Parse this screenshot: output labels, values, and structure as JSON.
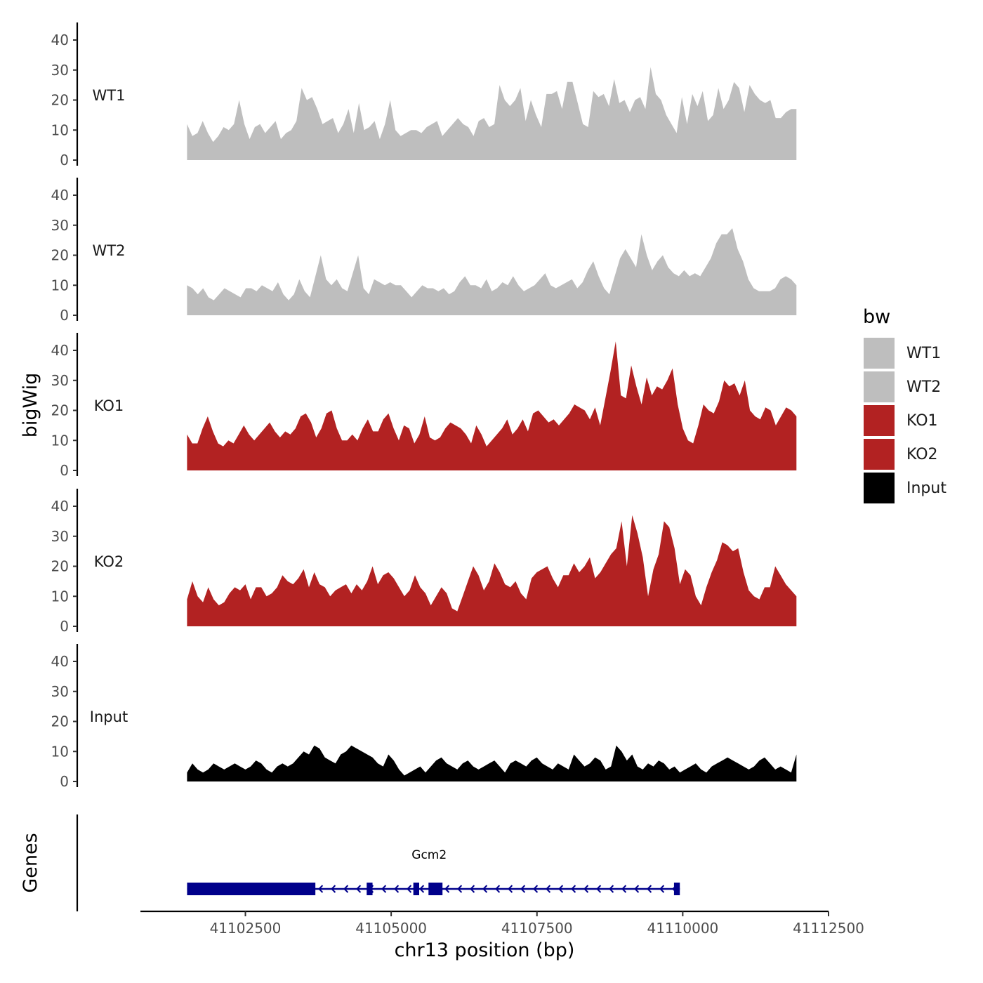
{
  "chart_data": {
    "type": "area",
    "title": "",
    "chromosome": "chr13",
    "xlabel": "chr13 position (bp)",
    "ylabel": "bigWig",
    "genes_label": "Genes",
    "xlim": [
      41100700,
      41112500
    ],
    "ylim": [
      0,
      45
    ],
    "x_ticks": [
      41102500,
      41105000,
      41107500,
      41110000,
      41112500
    ],
    "y_ticks": [
      0,
      10,
      20,
      30,
      40
    ],
    "region": [
      41101500,
      41111950
    ],
    "legend": {
      "title": "bw",
      "position": "right",
      "entries": [
        {
          "label": "WT1",
          "color": "#bebebe"
        },
        {
          "label": "WT2",
          "color": "#bebebe"
        },
        {
          "label": "KO1",
          "color": "#b22222"
        },
        {
          "label": "KO2",
          "color": "#b22222"
        },
        {
          "label": "Input",
          "color": "#000000"
        }
      ]
    },
    "series": [
      {
        "name": "WT1",
        "color": "#bebebe",
        "values": [
          12,
          8,
          9,
          13,
          9,
          6,
          8,
          11,
          10,
          12,
          20,
          12,
          7,
          11,
          12,
          9,
          11,
          13,
          7,
          9,
          10,
          13,
          24,
          20,
          21,
          17,
          12,
          13,
          14,
          9,
          12,
          17,
          9,
          19,
          10,
          11,
          13,
          7,
          12,
          20,
          10,
          8,
          9,
          10,
          10,
          9,
          11,
          12,
          13,
          8,
          10,
          12,
          14,
          12,
          11,
          8,
          13,
          14,
          11,
          12,
          25,
          20,
          18,
          20,
          24,
          13,
          20,
          15,
          11,
          22,
          22,
          23,
          17,
          26,
          26,
          19,
          12,
          11,
          23,
          21,
          22,
          18,
          27,
          19,
          20,
          16,
          20,
          21,
          17,
          31,
          22,
          20,
          15,
          12,
          9,
          21,
          12,
          22,
          18,
          23,
          13,
          15,
          24,
          17,
          20,
          26,
          24,
          16,
          25,
          22,
          20,
          19,
          20,
          14,
          14,
          16,
          17,
          17
        ]
      },
      {
        "name": "WT2",
        "color": "#bebebe",
        "values": [
          10,
          9,
          7,
          9,
          6,
          5,
          7,
          9,
          8,
          7,
          6,
          9,
          9,
          8,
          10,
          9,
          8,
          11,
          7,
          5,
          7,
          12,
          8,
          6,
          13,
          20,
          12,
          10,
          12,
          9,
          8,
          14,
          20,
          9,
          7,
          12,
          11,
          10,
          11,
          10,
          10,
          8,
          6,
          8,
          10,
          9,
          9,
          8,
          9,
          7,
          8,
          11,
          13,
          10,
          10,
          9,
          12,
          8,
          9,
          11,
          10,
          13,
          10,
          8,
          9,
          10,
          12,
          14,
          10,
          9,
          10,
          11,
          12,
          9,
          11,
          15,
          18,
          13,
          9,
          7,
          13,
          19,
          22,
          19,
          16,
          27,
          20,
          15,
          18,
          20,
          16,
          14,
          13,
          15,
          13,
          14,
          13,
          16,
          19,
          24,
          27,
          27,
          29,
          22,
          18,
          12,
          9,
          8,
          8,
          8,
          9,
          12,
          13,
          12,
          10
        ]
      },
      {
        "name": "KO1",
        "color": "#b22222",
        "values": [
          12,
          9,
          9,
          14,
          18,
          13,
          9,
          8,
          10,
          9,
          12,
          15,
          12,
          10,
          12,
          14,
          16,
          13,
          11,
          13,
          12,
          14,
          18,
          19,
          16,
          11,
          14,
          19,
          20,
          14,
          10,
          10,
          12,
          10,
          14,
          17,
          13,
          13,
          17,
          19,
          14,
          10,
          15,
          14,
          9,
          12,
          18,
          11,
          10,
          11,
          14,
          16,
          15,
          14,
          12,
          9,
          15,
          12,
          8,
          10,
          12,
          14,
          17,
          12,
          14,
          17,
          13,
          19,
          20,
          18,
          16,
          17,
          15,
          17,
          19,
          22,
          21,
          20,
          17,
          21,
          15,
          24,
          33,
          43,
          25,
          24,
          35,
          28,
          22,
          31,
          25,
          28,
          27,
          30,
          34,
          22,
          14,
          10,
          9,
          15,
          22,
          20,
          19,
          23,
          30,
          28,
          29,
          25,
          30,
          20,
          18,
          17,
          21,
          20,
          15,
          18,
          21,
          20,
          18
        ]
      },
      {
        "name": "KO2",
        "color": "#b22222",
        "values": [
          9,
          15,
          10,
          8,
          13,
          9,
          7,
          8,
          11,
          13,
          12,
          14,
          9,
          13,
          13,
          10,
          11,
          13,
          17,
          15,
          14,
          16,
          19,
          13,
          18,
          14,
          13,
          10,
          12,
          13,
          14,
          11,
          14,
          12,
          15,
          20,
          14,
          17,
          18,
          16,
          13,
          10,
          12,
          17,
          13,
          11,
          7,
          10,
          13,
          11,
          6,
          5,
          10,
          15,
          20,
          17,
          12,
          15,
          21,
          18,
          14,
          13,
          15,
          11,
          9,
          16,
          18,
          19,
          20,
          16,
          13,
          17,
          17,
          21,
          18,
          20,
          23,
          16,
          18,
          21,
          24,
          26,
          35,
          20,
          37,
          31,
          23,
          10,
          19,
          24,
          35,
          33,
          26,
          14,
          19,
          17,
          10,
          7,
          13,
          18,
          22,
          28,
          27,
          25,
          26,
          18,
          12,
          10,
          9,
          13,
          13,
          20,
          17,
          14,
          12,
          10
        ]
      },
      {
        "name": "Input",
        "color": "#000000",
        "values": [
          3,
          6,
          4,
          3,
          4,
          6,
          5,
          4,
          5,
          6,
          5,
          4,
          5,
          7,
          6,
          4,
          3,
          5,
          6,
          5,
          6,
          8,
          10,
          9,
          12,
          11,
          8,
          7,
          6,
          9,
          10,
          12,
          11,
          10,
          9,
          8,
          6,
          5,
          9,
          7,
          4,
          2,
          3,
          4,
          5,
          3,
          5,
          7,
          8,
          6,
          5,
          4,
          6,
          7,
          5,
          4,
          5,
          6,
          7,
          5,
          3,
          6,
          7,
          6,
          5,
          7,
          8,
          6,
          5,
          4,
          6,
          5,
          4,
          9,
          7,
          5,
          6,
          8,
          7,
          4,
          5,
          12,
          10,
          7,
          9,
          5,
          4,
          6,
          5,
          7,
          6,
          4,
          5,
          3,
          4,
          5,
          6,
          4,
          3,
          5,
          6,
          7,
          8,
          7,
          6,
          5,
          4,
          5,
          7,
          8,
          6,
          4,
          5,
          4,
          3,
          9
        ]
      }
    ],
    "genes": [
      {
        "name": "Gcm2",
        "strand": "-",
        "start": 41101500,
        "end": 41109950,
        "exons": [
          [
            41101500,
            41103700
          ],
          [
            41104580,
            41104680
          ],
          [
            41105380,
            41105480
          ],
          [
            41105640,
            41105880
          ],
          [
            41109850,
            41109950
          ]
        ]
      }
    ]
  }
}
